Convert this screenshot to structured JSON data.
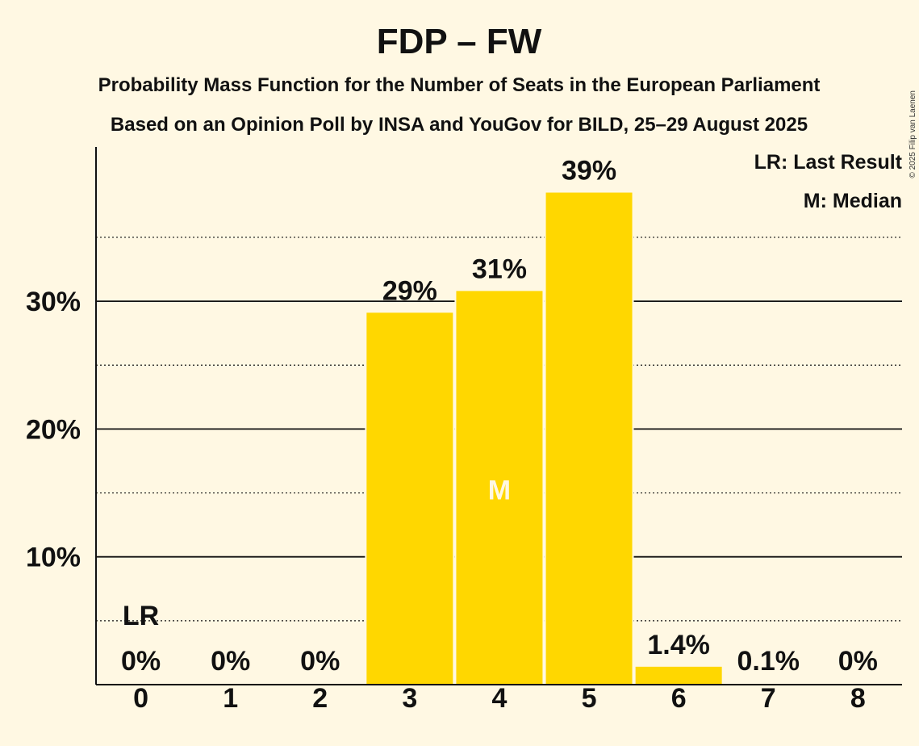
{
  "chart_data": {
    "type": "bar",
    "title": "FDP – FW",
    "subtitle": "Probability Mass Function for the Number of Seats in the European Parliament",
    "subtitle2": "Based on an Opinion Poll by INSA and YouGov for BILD, 25–29 August 2025",
    "copyright": "© 2025 Filip van Laenen",
    "categories": [
      "0",
      "1",
      "2",
      "3",
      "4",
      "5",
      "6",
      "7",
      "8"
    ],
    "values": [
      0,
      0,
      0,
      29.1,
      30.8,
      38.5,
      1.4,
      0.1,
      0
    ],
    "value_labels": [
      "0%",
      "0%",
      "0%",
      "29%",
      "31%",
      "39%",
      "1.4%",
      "0.1%",
      "0%"
    ],
    "yticks": [
      10,
      20,
      30
    ],
    "ytick_labels": [
      "10%",
      "20%",
      "30%"
    ],
    "ylim": [
      0,
      42
    ],
    "grid": "solid major lines every 10%, dotted minor lines every 5%",
    "bar_color": "#FFD700",
    "background_color": "#FFF8E3",
    "last_result_index": 0,
    "last_result_label": "LR",
    "median_index": 4,
    "median_label": "M",
    "legend": {
      "position": "top-right",
      "entries": [
        "LR: Last Result",
        "M: Median"
      ]
    }
  }
}
